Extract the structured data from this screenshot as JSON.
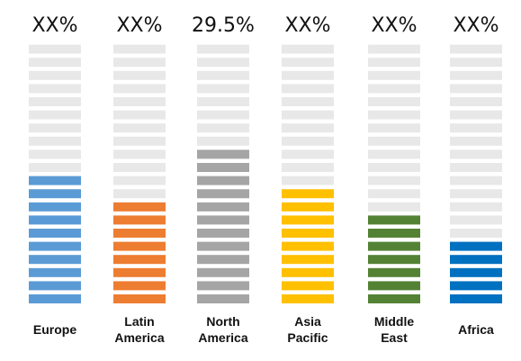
{
  "chart_data": {
    "type": "bar",
    "title": "",
    "xlabel": "",
    "ylabel": "",
    "segments_total": 20,
    "categories": [
      {
        "label_lines": [
          "Europe"
        ],
        "value_label": "XX%",
        "filled_segments": 10,
        "color": "#5b9bd5"
      },
      {
        "label_lines": [
          "Latin",
          "America"
        ],
        "value_label": "XX%",
        "filled_segments": 8,
        "color": "#ed7d31"
      },
      {
        "label_lines": [
          "North",
          "America"
        ],
        "value_label": "29.5%",
        "filled_segments": 12,
        "color": "#a5a5a5"
      },
      {
        "label_lines": [
          "Asia",
          "Pacific"
        ],
        "value_label": "XX%",
        "filled_segments": 9,
        "color": "#ffc000"
      },
      {
        "label_lines": [
          "Middle",
          "East"
        ],
        "value_label": "XX%",
        "filled_segments": 7,
        "color": "#548235"
      },
      {
        "label_lines": [
          "Africa"
        ],
        "value_label": "XX%",
        "filled_segments": 5,
        "color": "#0070c0"
      }
    ],
    "empty_segment_color": "#e8e8e8",
    "grid": false,
    "legend": "none"
  }
}
